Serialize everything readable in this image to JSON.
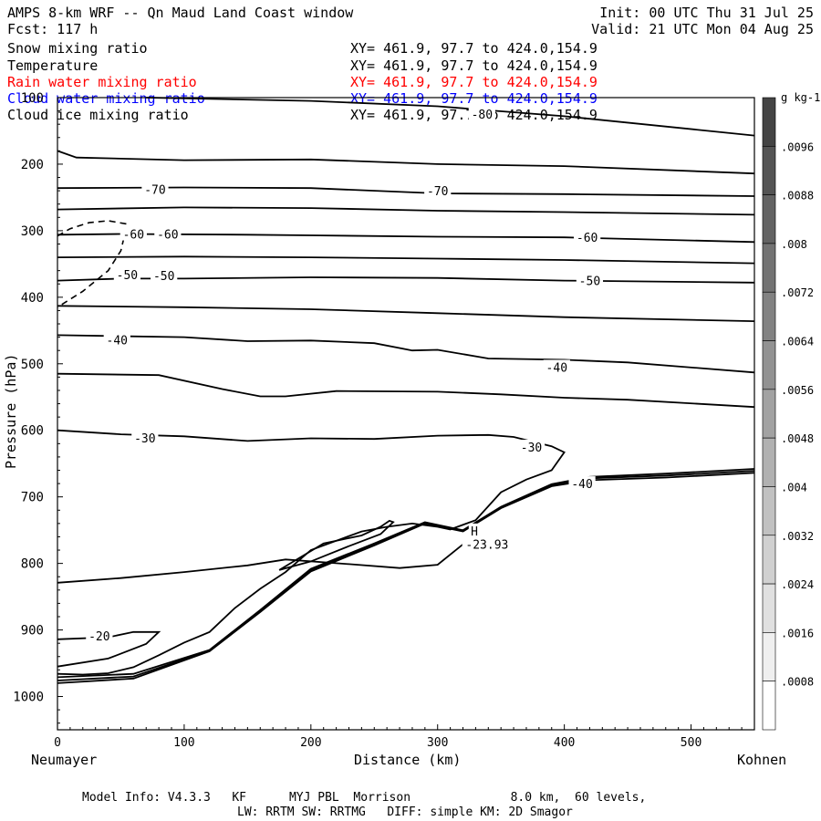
{
  "header": {
    "title": "AMPS 8-km WRF -- Qn Maud Land Coast window",
    "init": "Init: 00 UTC Thu 31 Jul 25",
    "fcst": "Fcst: 117 h",
    "valid": "Valid: 21 UTC Mon 04 Aug 25"
  },
  "fields": [
    {
      "label": "Snow mixing ratio",
      "xy": "XY= 461.9, 97.7 to 424.0,154.9",
      "color": "#000000"
    },
    {
      "label": "Temperature",
      "xy": "XY= 461.9, 97.7 to 424.0,154.9",
      "color": "#000000"
    },
    {
      "label": "Rain water mixing ratio",
      "xy": "XY= 461.9, 97.7 to 424.0,154.9",
      "color": "#ff0000"
    },
    {
      "label": "Cloud water mixing ratio",
      "xy": "XY= 461.9, 97.7 to 424.0,154.9",
      "color": "#0000ff"
    },
    {
      "label": "Cloud ice mixing ratio",
      "xy": "XY= 461.9, 97.7 to 424.0,154.9",
      "color": "#000000"
    }
  ],
  "footer": {
    "line1": "Model Info: V4.3.3   KF      MYJ PBL  Morrison              8.0 km,  60 levels,",
    "line2": "LW: RRTM SW: RRTMG   DIFF: simple KM: 2D Smagor"
  },
  "chart_data": {
    "type": "line",
    "title": "",
    "xlabel": "Distance (km)",
    "ylabel": "Pressure (hPa)",
    "x_left_label": "Neumayer",
    "x_right_label": "Kohnen",
    "xlim": [
      0,
      550
    ],
    "ylim": [
      1050,
      100
    ],
    "xticks": [
      0,
      100,
      200,
      300,
      400,
      500
    ],
    "yticks": [
      100,
      200,
      300,
      400,
      500,
      600,
      700,
      800,
      900,
      1000
    ],
    "grid": false,
    "colorbar": {
      "unit": "g kg-1",
      "ticks": [
        ".0008",
        ".0016",
        ".0024",
        ".0032",
        ".004",
        ".0048",
        ".0056",
        ".0064",
        ".0072",
        ".008",
        ".0088",
        ".0096"
      ],
      "low_color": "#ffffff",
      "high_color": "#444444"
    },
    "contour_labels": [
      {
        "text": "-80",
        "x": 335,
        "y": 125
      },
      {
        "text": "-70",
        "x": 77,
        "y": 238
      },
      {
        "text": "-70",
        "x": 300,
        "y": 240
      },
      {
        "text": "-60",
        "x": 60,
        "y": 305
      },
      {
        "text": "-60",
        "x": 87,
        "y": 305
      },
      {
        "text": "-60",
        "x": 418,
        "y": 310
      },
      {
        "text": "-50",
        "x": 55,
        "y": 366
      },
      {
        "text": "-50",
        "x": 84,
        "y": 367
      },
      {
        "text": "-50",
        "x": 420,
        "y": 375
      },
      {
        "text": "-40",
        "x": 47,
        "y": 464
      },
      {
        "text": "-40",
        "x": 394,
        "y": 505
      },
      {
        "text": "-30",
        "x": 69,
        "y": 611
      },
      {
        "text": "-30",
        "x": 374,
        "y": 625
      },
      {
        "text": "-40",
        "x": 414,
        "y": 680
      },
      {
        "text": "-20",
        "x": 33,
        "y": 909
      },
      {
        "text": "H",
        "x": 329,
        "y": 751
      },
      {
        "text": "-23.93",
        "x": 339,
        "y": 771
      }
    ],
    "series": [
      {
        "values": [
          [
            70,
            100
          ],
          [
            200,
            105
          ],
          [
            300,
            113
          ],
          [
            400,
            128
          ],
          [
            550,
            157
          ]
        ]
      },
      {
        "values": [
          [
            0,
            180
          ],
          [
            15,
            190
          ],
          [
            100,
            194
          ],
          [
            200,
            193
          ],
          [
            300,
            200
          ],
          [
            400,
            203
          ],
          [
            550,
            214
          ]
        ]
      },
      {
        "values": [
          [
            0,
            236
          ],
          [
            100,
            235
          ],
          [
            200,
            236
          ],
          [
            300,
            244
          ],
          [
            400,
            245
          ],
          [
            550,
            248
          ]
        ]
      },
      {
        "values": [
          [
            0,
            268
          ],
          [
            100,
            265
          ],
          [
            200,
            266
          ],
          [
            300,
            270
          ],
          [
            400,
            272
          ],
          [
            550,
            276
          ]
        ]
      },
      {
        "values": [
          [
            0,
            306
          ],
          [
            50,
            305
          ],
          [
            150,
            306
          ],
          [
            200,
            307
          ],
          [
            300,
            309
          ],
          [
            400,
            310
          ],
          [
            550,
            317
          ]
        ]
      },
      {
        "values": [
          [
            0,
            340
          ],
          [
            100,
            339
          ],
          [
            200,
            340
          ],
          [
            300,
            342
          ],
          [
            400,
            344
          ],
          [
            550,
            349
          ]
        ]
      },
      {
        "values": [
          [
            0,
            375
          ],
          [
            50,
            372
          ],
          [
            100,
            372
          ],
          [
            200,
            370
          ],
          [
            300,
            371
          ],
          [
            400,
            375
          ],
          [
            550,
            378
          ]
        ]
      },
      {
        "values": [
          [
            0,
            413
          ],
          [
            100,
            415
          ],
          [
            200,
            418
          ],
          [
            300,
            424
          ],
          [
            400,
            430
          ],
          [
            550,
            436
          ]
        ]
      },
      {
        "values": [
          [
            0,
            457
          ],
          [
            100,
            460
          ],
          [
            150,
            466
          ],
          [
            200,
            465
          ],
          [
            250,
            469
          ],
          [
            280,
            480
          ],
          [
            300,
            479
          ],
          [
            340,
            492
          ],
          [
            400,
            494
          ],
          [
            450,
            498
          ],
          [
            550,
            513
          ]
        ]
      },
      {
        "values": [
          [
            0,
            515
          ],
          [
            80,
            517
          ],
          [
            130,
            538
          ],
          [
            160,
            549
          ],
          [
            180,
            549
          ],
          [
            220,
            541
          ],
          [
            300,
            542
          ],
          [
            350,
            546
          ],
          [
            400,
            551
          ],
          [
            450,
            554
          ],
          [
            550,
            565
          ]
        ]
      },
      {
        "values": [
          [
            0,
            600
          ],
          [
            50,
            606
          ],
          [
            100,
            609
          ],
          [
            150,
            616
          ],
          [
            200,
            612
          ],
          [
            250,
            613
          ],
          [
            300,
            608
          ],
          [
            340,
            607
          ],
          [
            360,
            610
          ],
          [
            390,
            624
          ],
          [
            400,
            633
          ],
          [
            390,
            660
          ],
          [
            370,
            674
          ],
          [
            350,
            693
          ],
          [
            330,
            735
          ],
          [
            310,
            749
          ],
          [
            300,
            745
          ],
          [
            280,
            740
          ],
          [
            260,
            745
          ],
          [
            240,
            752
          ],
          [
            220,
            766
          ],
          [
            200,
            780
          ],
          [
            180,
            813
          ],
          [
            160,
            838
          ],
          [
            140,
            867
          ],
          [
            120,
            903
          ],
          [
            100,
            919
          ],
          [
            80,
            938
          ],
          [
            60,
            956
          ],
          [
            40,
            965
          ],
          [
            20,
            967
          ],
          [
            0,
            966
          ]
        ]
      },
      {
        "values": [
          [
            0,
            829
          ],
          [
            50,
            822
          ],
          [
            100,
            813
          ],
          [
            150,
            803
          ],
          [
            180,
            794
          ],
          [
            230,
            801
          ],
          [
            270,
            807
          ],
          [
            300,
            802
          ],
          [
            330,
            756
          ]
        ]
      },
      {
        "values": [
          [
            0,
            914
          ],
          [
            40,
            911
          ],
          [
            60,
            903
          ],
          [
            80,
            903
          ],
          [
            70,
            921
          ],
          [
            40,
            943
          ],
          [
            0,
            955
          ]
        ]
      },
      {
        "values": [
          [
            0,
            971
          ],
          [
            60,
            966
          ],
          [
            120,
            930
          ],
          [
            160,
            870
          ],
          [
            200,
            808
          ],
          [
            250,
            770
          ],
          [
            290,
            738
          ],
          [
            320,
            750
          ],
          [
            350,
            715
          ],
          [
            390,
            681
          ],
          [
            420,
            670
          ],
          [
            480,
            665
          ],
          [
            550,
            658
          ]
        ]
      },
      {
        "values": [
          [
            0,
            976
          ],
          [
            60,
            970
          ],
          [
            120,
            931
          ],
          [
            160,
            871
          ],
          [
            200,
            810
          ],
          [
            250,
            771
          ],
          [
            290,
            739
          ],
          [
            320,
            751
          ],
          [
            350,
            716
          ],
          [
            390,
            682
          ],
          [
            420,
            672
          ],
          [
            480,
            668
          ],
          [
            550,
            661
          ]
        ]
      },
      {
        "values": [
          [
            0,
            980
          ],
          [
            60,
            973
          ],
          [
            120,
            932
          ],
          [
            160,
            873
          ],
          [
            200,
            812
          ],
          [
            250,
            773
          ],
          [
            290,
            740
          ],
          [
            320,
            752
          ],
          [
            350,
            717
          ],
          [
            390,
            684
          ],
          [
            420,
            675
          ],
          [
            480,
            671
          ],
          [
            550,
            664
          ]
        ]
      },
      {
        "values": [
          [
            175,
            810
          ],
          [
            210,
            770
          ],
          [
            240,
            758
          ],
          [
            255,
            745
          ],
          [
            262,
            736
          ],
          [
            265,
            738
          ],
          [
            255,
            756
          ],
          [
            230,
            774
          ],
          [
            200,
            797
          ],
          [
            175,
            810
          ]
        ]
      }
    ],
    "dashed_series": [
      {
        "values": [
          [
            0,
            308
          ],
          [
            10,
            297
          ],
          [
            25,
            288
          ],
          [
            40,
            285
          ],
          [
            55,
            290
          ],
          [
            50,
            330
          ],
          [
            40,
            360
          ],
          [
            20,
            391
          ],
          [
            0,
            415
          ]
        ]
      }
    ]
  }
}
